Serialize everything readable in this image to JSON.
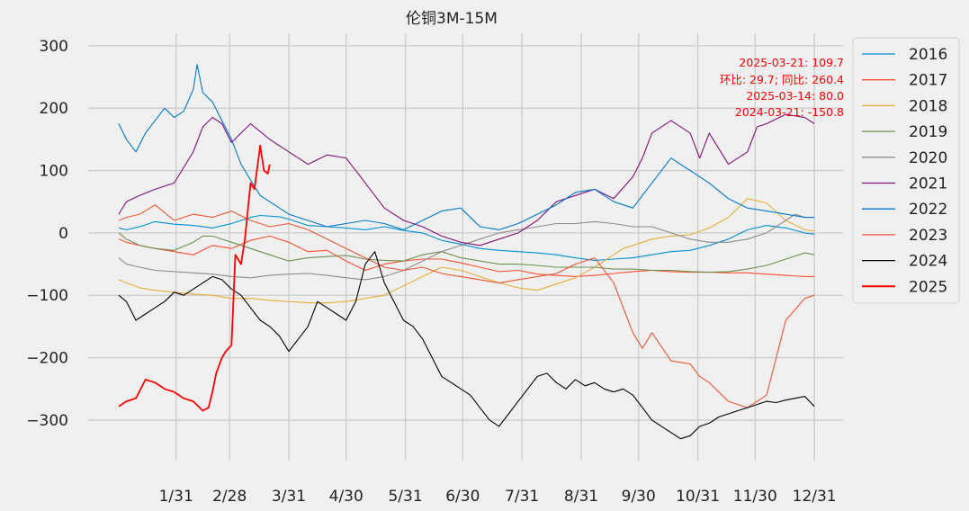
{
  "chart_data": {
    "type": "line",
    "title": "伦铜3M-15M",
    "xlabel": "",
    "ylabel": "",
    "x_axis": "day of year",
    "xlim": [
      -15,
      380
    ],
    "ylim": [
      -365,
      320
    ],
    "grid": true,
    "legend_position": "outside-right",
    "x_ticks": [
      {
        "label": "1/31",
        "day": 31
      },
      {
        "label": "2/28",
        "day": 59
      },
      {
        "label": "3/31",
        "day": 90
      },
      {
        "label": "4/30",
        "day": 120
      },
      {
        "label": "5/31",
        "day": 151
      },
      {
        "label": "6/30",
        "day": 181
      },
      {
        "label": "7/31",
        "day": 212
      },
      {
        "label": "8/31",
        "day": 243
      },
      {
        "label": "9/30",
        "day": 273
      },
      {
        "label": "10/31",
        "day": 304
      },
      {
        "label": "11/30",
        "day": 334
      },
      {
        "label": "12/31",
        "day": 365
      }
    ],
    "y_ticks": [
      300,
      200,
      100,
      0,
      -100,
      -200,
      -300
    ],
    "annotations": [
      "2025-03-21: 109.7",
      "环比: 29.7; 同比: 260.4",
      "2025-03-14: 80.0",
      "2024-03-21: -150.8"
    ],
    "annotation_color": "#ff0000",
    "series": [
      {
        "name": "2016",
        "color": "#008fd5",
        "width": 1.1,
        "x": [
          1,
          5,
          12,
          20,
          30,
          40,
          50,
          60,
          65,
          70,
          75,
          85,
          90,
          100,
          110,
          120,
          130,
          140,
          150,
          160,
          170,
          180,
          190,
          200,
          210,
          220,
          230,
          240,
          250,
          260,
          270,
          280,
          290,
          300,
          310,
          320,
          330,
          340,
          350,
          360,
          365
        ],
        "y": [
          8,
          5,
          10,
          18,
          14,
          12,
          8,
          15,
          20,
          25,
          28,
          26,
          22,
          12,
          10,
          8,
          5,
          10,
          4,
          0,
          -12,
          -18,
          -25,
          -28,
          -30,
          -32,
          -35,
          -40,
          -44,
          -42,
          -40,
          -35,
          -30,
          -28,
          -20,
          -10,
          5,
          12,
          8,
          0,
          -2
        ]
      },
      {
        "name": "2017",
        "color": "#fc4f30",
        "width": 1.1,
        "x": [
          1,
          5,
          12,
          20,
          30,
          40,
          50,
          60,
          70,
          80,
          90,
          100,
          110,
          120,
          130,
          140,
          150,
          160,
          170,
          180,
          190,
          200,
          210,
          220,
          230,
          240,
          250,
          260,
          270,
          280,
          290,
          300,
          310,
          320,
          330,
          340,
          350,
          360,
          365
        ],
        "y": [
          -10,
          -15,
          -20,
          -25,
          -30,
          -35,
          -20,
          -25,
          -12,
          -5,
          -15,
          -30,
          -28,
          -45,
          -60,
          -50,
          -45,
          -42,
          -42,
          -48,
          -55,
          -62,
          -60,
          -66,
          -68,
          -70,
          -68,
          -65,
          -62,
          -60,
          -62,
          -63,
          -63,
          -64,
          -64,
          -66,
          -68,
          -70,
          -70
        ]
      },
      {
        "name": "2018",
        "color": "#e5ae38",
        "width": 1.1,
        "x": [
          1,
          5,
          12,
          20,
          30,
          40,
          50,
          60,
          70,
          80,
          90,
          100,
          110,
          120,
          130,
          140,
          150,
          160,
          170,
          180,
          190,
          200,
          210,
          220,
          230,
          240,
          250,
          260,
          265,
          270,
          280,
          290,
          300,
          310,
          320,
          330,
          340,
          350,
          360,
          365
        ],
        "y": [
          -75,
          -80,
          -88,
          -92,
          -95,
          -98,
          -100,
          -105,
          -105,
          -108,
          -110,
          -112,
          -112,
          -110,
          -105,
          -100,
          -85,
          -70,
          -55,
          -60,
          -70,
          -80,
          -88,
          -92,
          -82,
          -72,
          -55,
          -35,
          -25,
          -20,
          -10,
          -5,
          -3,
          8,
          25,
          55,
          48,
          20,
          5,
          3
        ]
      },
      {
        "name": "2019",
        "color": "#6d904f",
        "width": 1.1,
        "x": [
          1,
          5,
          12,
          20,
          30,
          40,
          45,
          50,
          60,
          70,
          80,
          90,
          100,
          110,
          120,
          130,
          140,
          150,
          160,
          170,
          180,
          190,
          200,
          210,
          220,
          230,
          240,
          250,
          260,
          270,
          280,
          290,
          300,
          310,
          320,
          330,
          340,
          350,
          360,
          365
        ],
        "y": [
          0,
          -10,
          -20,
          -25,
          -28,
          -15,
          -5,
          -5,
          -15,
          -25,
          -35,
          -45,
          -40,
          -38,
          -36,
          -42,
          -44,
          -45,
          -35,
          -30,
          -40,
          -45,
          -50,
          -50,
          -52,
          -55,
          -55,
          -55,
          -58,
          -58,
          -60,
          -60,
          -62,
          -63,
          -62,
          -58,
          -52,
          -42,
          -32,
          -35
        ]
      },
      {
        "name": "2020",
        "color": "#8b8b8b",
        "width": 1.1,
        "x": [
          1,
          5,
          12,
          20,
          30,
          40,
          50,
          60,
          70,
          80,
          90,
          100,
          110,
          120,
          130,
          140,
          150,
          160,
          170,
          180,
          190,
          200,
          210,
          220,
          230,
          240,
          250,
          260,
          270,
          280,
          290,
          300,
          310,
          320,
          330,
          340,
          350,
          355,
          360,
          365
        ],
        "y": [
          -40,
          -50,
          -55,
          -60,
          -62,
          -64,
          -66,
          -70,
          -72,
          -68,
          -66,
          -65,
          -68,
          -72,
          -75,
          -70,
          -60,
          -45,
          -30,
          -20,
          -10,
          0,
          5,
          10,
          15,
          15,
          18,
          15,
          10,
          10,
          0,
          -10,
          -15,
          -15,
          -10,
          0,
          20,
          30,
          25,
          25
        ]
      },
      {
        "name": "2021",
        "color": "#810f7c",
        "width": 1.1,
        "x": [
          1,
          5,
          12,
          20,
          30,
          40,
          45,
          50,
          55,
          60,
          65,
          70,
          80,
          90,
          100,
          110,
          120,
          130,
          140,
          150,
          160,
          170,
          180,
          190,
          200,
          210,
          220,
          230,
          240,
          250,
          260,
          270,
          275,
          280,
          290,
          300,
          305,
          310,
          320,
          330,
          335,
          340,
          350,
          360,
          365
        ],
        "y": [
          30,
          50,
          60,
          70,
          80,
          130,
          170,
          185,
          175,
          145,
          160,
          175,
          150,
          130,
          110,
          125,
          120,
          80,
          40,
          20,
          10,
          -5,
          -15,
          -20,
          -10,
          0,
          20,
          50,
          60,
          70,
          55,
          90,
          120,
          160,
          180,
          160,
          120,
          160,
          110,
          130,
          170,
          175,
          190,
          185,
          175
        ]
      },
      {
        "name": "2022",
        "color": "#0077cc",
        "width": 1.1,
        "x": [
          1,
          5,
          10,
          15,
          20,
          25,
          30,
          35,
          40,
          42,
          45,
          50,
          55,
          60,
          65,
          70,
          75,
          80,
          90,
          100,
          110,
          120,
          130,
          140,
          150,
          160,
          170,
          180,
          190,
          200,
          210,
          220,
          230,
          240,
          250,
          260,
          270,
          280,
          290,
          300,
          310,
          320,
          330,
          340,
          350,
          360,
          365
        ],
        "y": [
          175,
          150,
          130,
          160,
          180,
          200,
          185,
          195,
          230,
          270,
          225,
          210,
          180,
          150,
          110,
          85,
          60,
          50,
          30,
          20,
          10,
          15,
          20,
          15,
          5,
          20,
          35,
          40,
          10,
          5,
          15,
          30,
          45,
          65,
          70,
          50,
          40,
          80,
          120,
          100,
          80,
          55,
          40,
          35,
          30,
          25,
          25
        ]
      },
      {
        "name": "2023",
        "color": "#ee5533",
        "width": 1.1,
        "x": [
          1,
          5,
          12,
          20,
          30,
          40,
          50,
          60,
          70,
          80,
          90,
          100,
          110,
          120,
          130,
          140,
          150,
          160,
          170,
          180,
          190,
          200,
          210,
          220,
          230,
          240,
          250,
          260,
          265,
          270,
          275,
          280,
          290,
          300,
          305,
          310,
          320,
          330,
          340,
          345,
          350,
          360,
          365
        ],
        "y": [
          20,
          25,
          30,
          45,
          20,
          30,
          25,
          35,
          20,
          10,
          15,
          5,
          -10,
          -25,
          -40,
          -55,
          -60,
          -55,
          -65,
          -70,
          -75,
          -80,
          -75,
          -70,
          -65,
          -50,
          -40,
          -80,
          -120,
          -160,
          -185,
          -160,
          -205,
          -210,
          -230,
          -240,
          -270,
          -280,
          -260,
          -200,
          -140,
          -105,
          -100
        ]
      },
      {
        "name": "2024",
        "color": "#000000",
        "width": 1.1,
        "x": [
          1,
          5,
          10,
          15,
          20,
          25,
          30,
          35,
          40,
          45,
          50,
          55,
          60,
          65,
          70,
          75,
          80,
          85,
          90,
          95,
          100,
          105,
          110,
          115,
          120,
          125,
          130,
          135,
          140,
          145,
          150,
          155,
          160,
          165,
          170,
          175,
          180,
          185,
          190,
          195,
          200,
          205,
          210,
          215,
          220,
          225,
          230,
          235,
          240,
          245,
          250,
          255,
          260,
          265,
          270,
          275,
          280,
          285,
          290,
          295,
          300,
          305,
          310,
          315,
          320,
          325,
          330,
          335,
          340,
          345,
          350,
          355,
          360,
          365
        ],
        "y": [
          -100,
          -110,
          -140,
          -130,
          -120,
          -110,
          -95,
          -100,
          -90,
          -80,
          -70,
          -75,
          -90,
          -100,
          -120,
          -140,
          -150,
          -165,
          -190,
          -170,
          -150,
          -110,
          -120,
          -130,
          -140,
          -110,
          -50,
          -30,
          -80,
          -110,
          -140,
          -150,
          -170,
          -200,
          -230,
          -240,
          -250,
          -260,
          -280,
          -300,
          -310,
          -290,
          -270,
          -250,
          -230,
          -225,
          -240,
          -250,
          -235,
          -245,
          -240,
          -250,
          -255,
          -250,
          -260,
          -280,
          -300,
          -310,
          -320,
          -330,
          -325,
          -310,
          -305,
          -295,
          -290,
          -285,
          -280,
          -275,
          -270,
          -272,
          -268,
          -265,
          -262,
          -278
        ]
      },
      {
        "name": "2025",
        "color": "#ff0000",
        "width": 1.8,
        "x": [
          1,
          5,
          10,
          15,
          20,
          25,
          30,
          35,
          40,
          45,
          48,
          50,
          52,
          55,
          57,
          60,
          62,
          65,
          67,
          70,
          72,
          75,
          77,
          79,
          80
        ],
        "y": [
          -278,
          -270,
          -265,
          -235,
          -240,
          -250,
          -255,
          -265,
          -270,
          -285,
          -280,
          -255,
          -225,
          -200,
          -190,
          -180,
          -35,
          -50,
          -10,
          80,
          70,
          140,
          100,
          95,
          109.7
        ]
      }
    ]
  }
}
